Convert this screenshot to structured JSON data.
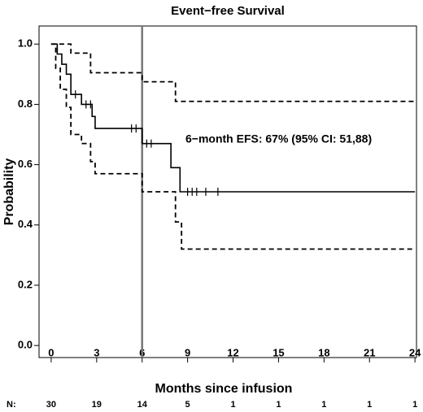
{
  "chart_data": {
    "type": "km",
    "title": "Event−free Survival",
    "xlabel": "Months since infusion",
    "ylabel": "Probability",
    "annotation": "6−month EFS: 67% (95% CI: 51,88)",
    "vline": 6,
    "xlim": [
      -0.8,
      24.1
    ],
    "ylim": [
      -0.04,
      1.06
    ],
    "xticks": [
      0,
      3,
      6,
      9,
      12,
      15,
      18,
      21,
      24
    ],
    "yticks": [
      {
        "value": 0,
        "label": "0.0"
      },
      0.2,
      0.4,
      0.6,
      0.8,
      {
        "value": 1,
        "label": "1.0"
      }
    ],
    "series": [
      {
        "name": "EFS",
        "color": "#000000",
        "style": "solid",
        "x": [
          0,
          0.4,
          0.7,
          1.0,
          1.3,
          2.0,
          2.7,
          2.9,
          6.0,
          7.9,
          8.5,
          24
        ],
        "values": [
          1,
          0.967,
          0.933,
          0.9,
          0.833,
          0.8,
          0.76,
          0.72,
          0.67,
          0.59,
          0.51,
          0.51
        ]
      },
      {
        "name": "Upper CI",
        "color": "#000000",
        "style": "dashed",
        "x": [
          0,
          1.3,
          2.6,
          6.0,
          8.2,
          24
        ],
        "values": [
          1,
          0.97,
          0.905,
          0.875,
          0.81,
          0.81
        ]
      },
      {
        "name": "Lower CI",
        "color": "#000000",
        "style": "dashed",
        "x": [
          0,
          0.3,
          0.6,
          1.0,
          1.3,
          2.0,
          2.6,
          2.9,
          6.0,
          8.2,
          8.6,
          24
        ],
        "values": [
          1,
          0.92,
          0.85,
          0.79,
          0.7,
          0.67,
          0.61,
          0.57,
          0.51,
          0.41,
          0.32,
          0.32
        ]
      }
    ],
    "censored": {
      "x": [
        1.6,
        2.3,
        2.6,
        5.3,
        5.6,
        6.3,
        6.6,
        9.0,
        9.3,
        9.6,
        10.2,
        11.0
      ],
      "values": [
        0.833,
        0.8,
        0.8,
        0.72,
        0.72,
        0.67,
        0.67,
        0.51,
        0.51,
        0.51,
        0.51,
        0.51
      ]
    },
    "risk_label": "N:",
    "risk_x": [
      0,
      3,
      6,
      9,
      12,
      15,
      18,
      21,
      24
    ],
    "risk_values": [
      30,
      19,
      14,
      5,
      1,
      1,
      1,
      1,
      1
    ]
  }
}
